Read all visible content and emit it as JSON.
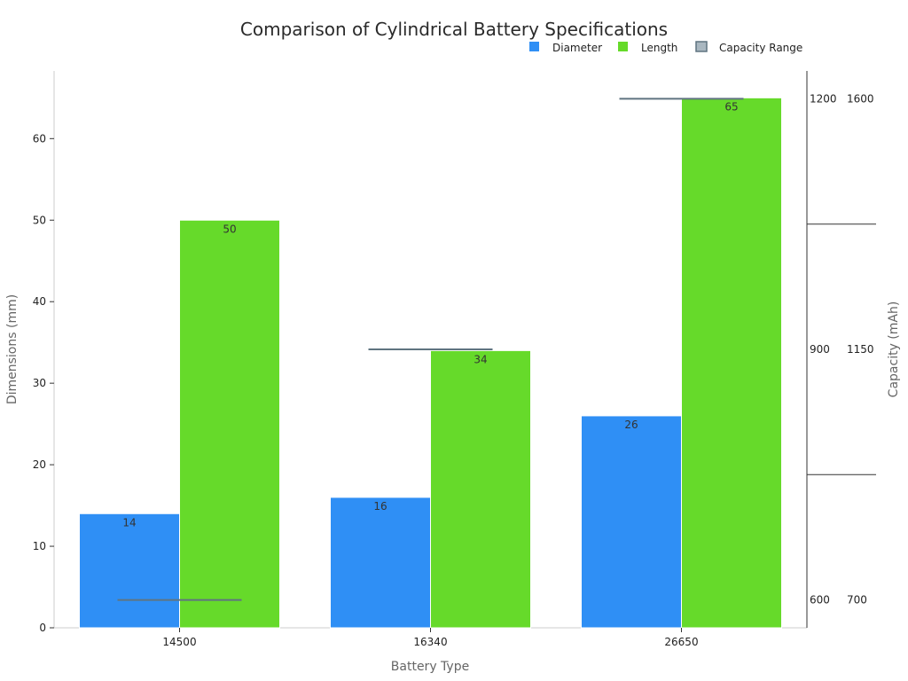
{
  "chart_data": {
    "type": "bar",
    "title": "Comparison of Cylindrical Battery Specifications",
    "xlabel": "Battery Type",
    "ylabel": "Dimensions (mm)",
    "y2label": "Capacity (mAh)",
    "categories": [
      "14500",
      "16340",
      "26650"
    ],
    "ylim": [
      0,
      68.3
    ],
    "yticks": [
      0,
      10,
      20,
      30,
      40,
      50,
      60
    ],
    "series": [
      {
        "name": "Diameter",
        "color": "#2f8ff5",
        "values": [
          14,
          16,
          26
        ]
      },
      {
        "name": "Length",
        "color": "#66da2a",
        "values": [
          50,
          34,
          65
        ]
      }
    ],
    "capacity_range": {
      "name": "Capacity Range",
      "color": "#5f7480",
      "fill": "#a9b7c0",
      "markers": [
        {
          "category": "14500",
          "level": 0.05
        },
        {
          "category": "16340",
          "level": 0.5
        },
        {
          "category": "26650",
          "level": 0.95
        }
      ],
      "right_ticks": [
        {
          "min": "600",
          "max": "700",
          "level": 0.05
        },
        {
          "min": "900",
          "max": "1150",
          "level": 0.5
        },
        {
          "min": "1200",
          "max": "1600",
          "level": 0.95
        }
      ],
      "separators": [
        0.275,
        0.725
      ]
    },
    "legend_position": "top-right",
    "grid": false
  }
}
